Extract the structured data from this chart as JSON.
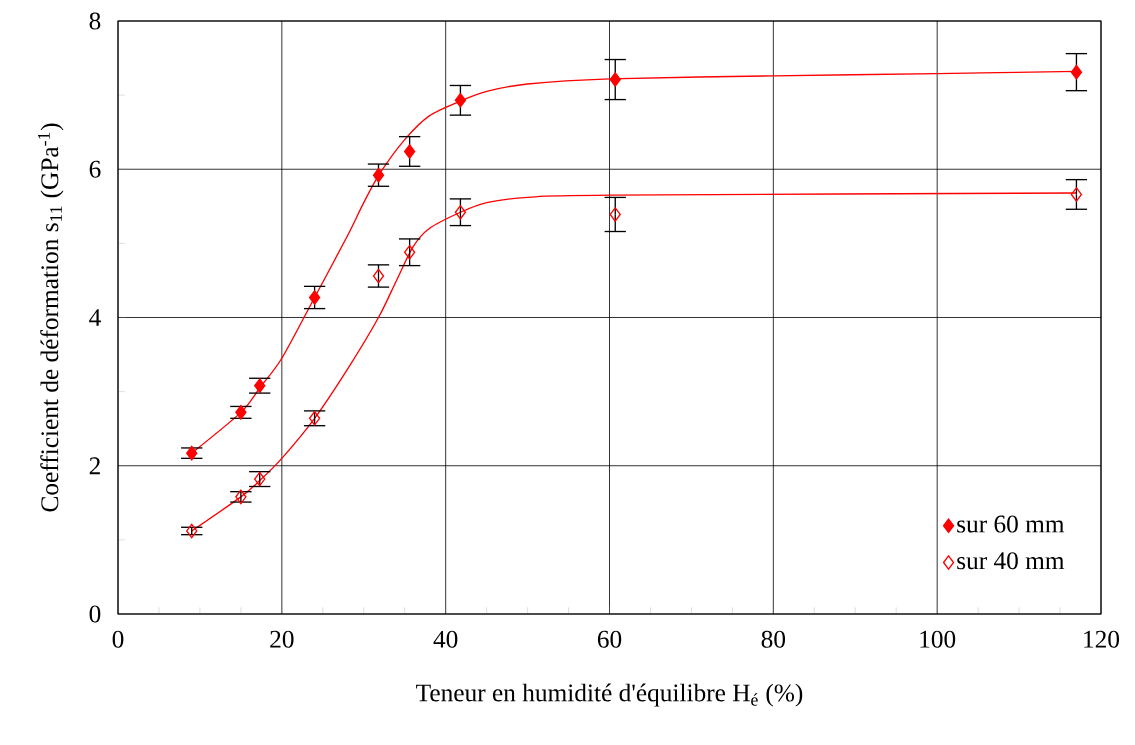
{
  "chart_data": {
    "type": "scatter",
    "xlabel": "Teneur en humidité d'équilibre H$_{é}$ (%)",
    "ylabel": "Coefficient de déformation s$_{11}$ (GPa$^{-1}$)",
    "xlim": [
      0,
      120
    ],
    "ylim": [
      0,
      8
    ],
    "xticks": [
      0,
      20,
      40,
      60,
      80,
      100,
      120
    ],
    "yticks": [
      0,
      2,
      4,
      6,
      8
    ],
    "grid": true,
    "legend": "bottom right",
    "marker": "diamond",
    "series": [
      {
        "type": "line",
        "color": "#ff0000",
        "marker": "none",
        "line_style": "solid",
        "x": [
          9,
          15,
          17.3,
          20,
          24,
          28,
          30,
          32,
          35,
          38,
          41.8,
          45,
          50,
          60,
          80,
          100,
          117
        ],
        "values": [
          2.17,
          2.72,
          3.05,
          3.45,
          4.27,
          5.1,
          5.55,
          5.95,
          6.4,
          6.72,
          6.92,
          7.05,
          7.15,
          7.22,
          7.26,
          7.29,
          7.32
        ]
      },
      {
        "type": "line",
        "color": "#ff0000",
        "marker": "none",
        "line_style": "solid",
        "x": [
          9,
          15,
          17.3,
          20,
          24,
          28,
          31.8,
          34,
          36,
          38,
          41.8,
          45,
          50,
          60,
          117
        ],
        "values": [
          1.12,
          1.58,
          1.8,
          2.1,
          2.64,
          3.3,
          4.0,
          4.5,
          4.95,
          5.2,
          5.42,
          5.55,
          5.62,
          5.65,
          5.68
        ]
      },
      {
        "name": "sur 60 mm",
        "color": "#ff0000",
        "x": [
          9,
          15,
          17.3,
          24,
          31.8,
          35.6,
          41.8,
          60.7,
          117
        ],
        "values": [
          2.17,
          2.72,
          3.08,
          4.27,
          5.92,
          6.24,
          6.93,
          7.21,
          7.31
        ],
        "errors": [
          0.07,
          0.08,
          0.1,
          0.15,
          0.15,
          0.2,
          0.2,
          0.27,
          0.25
        ]
      },
      {
        "name": "sur 40 mm",
        "color": "#ff0000",
        "x": [
          9,
          15,
          17.3,
          24,
          31.8,
          35.6,
          41.8,
          60.7,
          117
        ],
        "values": [
          1.12,
          1.58,
          1.82,
          2.64,
          4.56,
          4.88,
          5.42,
          5.39,
          5.66
        ],
        "errors": [
          0.05,
          0.07,
          0.1,
          0.1,
          0.15,
          0.18,
          0.18,
          0.23,
          0.2
        ]
      }
    ]
  }
}
